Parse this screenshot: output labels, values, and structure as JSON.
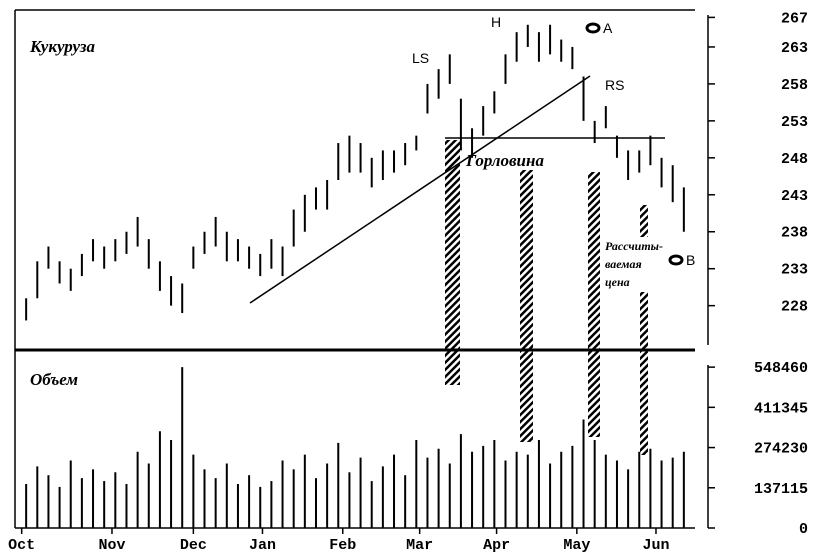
{
  "chart_data": [
    {
      "type": "range-bar",
      "title": "Кукуруза",
      "annotations": {
        "ls": "LS",
        "h": "H",
        "a": "A",
        "rs": "RS",
        "neck": "Горловина",
        "calc1": "Рассчиты-",
        "calc2": "ваемая",
        "calc3": "цена",
        "b": "B"
      },
      "x": [
        1,
        2,
        3,
        4,
        5,
        6,
        7,
        8,
        9,
        10,
        11,
        12,
        13,
        14,
        15,
        16,
        17,
        18,
        19,
        20,
        21,
        22,
        23,
        24,
        25,
        26,
        27,
        28,
        29,
        30,
        31,
        32,
        33,
        34,
        35,
        36,
        37,
        38,
        39,
        40,
        41,
        42,
        43,
        44,
        45,
        46,
        47,
        48,
        49,
        50,
        51,
        52,
        53,
        54,
        55,
        56,
        57,
        58,
        59,
        60
      ],
      "high": [
        229,
        234,
        236,
        234,
        233,
        235,
        237,
        236,
        237,
        238,
        240,
        237,
        234,
        232,
        231,
        236,
        238,
        240,
        238,
        237,
        236,
        235,
        237,
        236,
        241,
        243,
        244,
        245,
        250,
        251,
        250,
        248,
        249,
        249,
        250,
        251,
        258,
        260,
        262,
        256,
        252,
        255,
        257,
        262,
        265,
        266,
        265,
        266,
        264,
        263,
        259,
        253,
        255,
        251,
        249,
        249,
        251,
        248,
        247,
        244
      ],
      "low": [
        226,
        229,
        233,
        231,
        230,
        232,
        234,
        233,
        234,
        235,
        236,
        233,
        230,
        228,
        227,
        233,
        235,
        236,
        234,
        234,
        233,
        232,
        233,
        232,
        236,
        238,
        241,
        241,
        245,
        246,
        246,
        244,
        245,
        246,
        247,
        249,
        254,
        256,
        258,
        249,
        248,
        251,
        254,
        258,
        261,
        263,
        261,
        262,
        261,
        260,
        253,
        250,
        252,
        248,
        245,
        246,
        247,
        244,
        242,
        238
      ],
      "color": "#000",
      "xlim": [
        0,
        61
      ],
      "xticks": [
        {
          "value": 0.6,
          "label": "Oct"
        },
        {
          "value": 8.7,
          "label": "Nov"
        },
        {
          "value": 16,
          "label": "Dec"
        },
        {
          "value": 22.2,
          "label": "Jan"
        },
        {
          "value": 29.4,
          "label": "Feb"
        },
        {
          "value": 36.3,
          "label": "Mar"
        },
        {
          "value": 43.2,
          "label": "Apr"
        },
        {
          "value": 50.4,
          "label": "May"
        },
        {
          "value": 57.5,
          "label": "Jun"
        }
      ],
      "ylim": [
        222,
        268
      ],
      "yticks": [
        228,
        233,
        238,
        243,
        248,
        253,
        258,
        263,
        267
      ]
    },
    {
      "type": "bar",
      "title": "Объем",
      "x": [
        1,
        2,
        3,
        4,
        5,
        6,
        7,
        8,
        9,
        10,
        11,
        12,
        13,
        14,
        15,
        16,
        17,
        18,
        19,
        20,
        21,
        22,
        23,
        24,
        25,
        26,
        27,
        28,
        29,
        30,
        31,
        32,
        33,
        34,
        35,
        36,
        37,
        38,
        39,
        40,
        41,
        42,
        43,
        44,
        45,
        46,
        47,
        48,
        49,
        50,
        51,
        52,
        53,
        54,
        55,
        56,
        57,
        58,
        59,
        60
      ],
      "values": [
        150000,
        210000,
        180000,
        140000,
        230000,
        170000,
        200000,
        160000,
        190000,
        150000,
        260000,
        220000,
        330000,
        300000,
        548460,
        250000,
        200000,
        170000,
        220000,
        150000,
        180000,
        140000,
        160000,
        230000,
        200000,
        250000,
        170000,
        220000,
        290000,
        190000,
        240000,
        160000,
        210000,
        250000,
        180000,
        300000,
        240000,
        270000,
        220000,
        320000,
        260000,
        280000,
        300000,
        230000,
        260000,
        250000,
        300000,
        220000,
        260000,
        280000,
        370000,
        300000,
        250000,
        230000,
        200000,
        260000,
        270000,
        230000,
        240000,
        260000
      ],
      "color": "#000",
      "xlim": [
        0,
        61
      ],
      "ylim": [
        0,
        600000
      ],
      "yticks": [
        0,
        137115,
        274230,
        411345,
        548460
      ]
    }
  ]
}
